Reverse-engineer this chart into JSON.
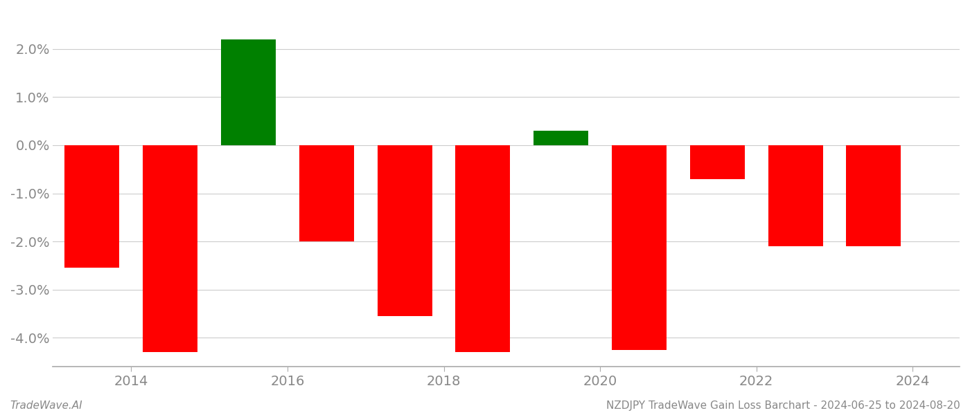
{
  "bar_centers": [
    2013.5,
    2014.5,
    2015.5,
    2016.5,
    2017.5,
    2018.5,
    2019.5,
    2020.5,
    2021.5,
    2022.5,
    2023.5
  ],
  "values": [
    -0.0255,
    -0.043,
    0.022,
    -0.02,
    -0.0355,
    -0.043,
    0.003,
    -0.0425,
    -0.007,
    -0.021,
    -0.021
  ],
  "colors": [
    "#ff0000",
    "#ff0000",
    "#008000",
    "#ff0000",
    "#ff0000",
    "#ff0000",
    "#008000",
    "#ff0000",
    "#ff0000",
    "#ff0000",
    "#ff0000"
  ],
  "bar_width": 0.7,
  "ylim": [
    -0.046,
    0.028
  ],
  "yticks": [
    -0.04,
    -0.03,
    -0.02,
    -0.01,
    0.0,
    0.01,
    0.02
  ],
  "xlim": [
    2013.0,
    2024.6
  ],
  "xticks": [
    2014,
    2016,
    2018,
    2020,
    2022,
    2024
  ],
  "grid_color": "#cccccc",
  "background_color": "#ffffff",
  "footer_left": "TradeWave.AI",
  "footer_right": "NZDJPY TradeWave Gain Loss Barchart - 2024-06-25 to 2024-08-20",
  "footer_fontsize": 11,
  "tick_label_color": "#888888",
  "tick_fontsize": 14,
  "spine_color": "#aaaaaa"
}
